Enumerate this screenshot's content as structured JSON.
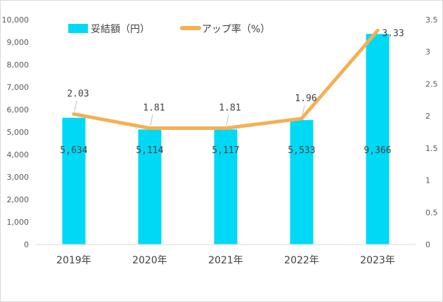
{
  "chart_data": {
    "type": "bar",
    "categories": [
      "2019年",
      "2020年",
      "2021年",
      "2022年",
      "2023年"
    ],
    "series": [
      {
        "name": "妥結額（円）",
        "kind": "bar",
        "axis": "left",
        "color": "#00d9f5",
        "values": [
          5634,
          5114,
          5117,
          5533,
          9366
        ],
        "labels": [
          "5,634",
          "5,114",
          "5,117",
          "5,533",
          "9,366"
        ]
      },
      {
        "name": "アップ率（%）",
        "kind": "line",
        "axis": "right",
        "color": "#f4b053",
        "values": [
          2.03,
          1.81,
          1.81,
          1.96,
          3.33
        ],
        "labels": [
          "2.03",
          "1.81",
          "1.81",
          "1.96",
          "3.33"
        ]
      }
    ],
    "y_left": {
      "min": 0,
      "max": 10000,
      "ticks": [
        "0",
        "1,000",
        "2,000",
        "3,000",
        "4,000",
        "5,000",
        "6,000",
        "7,000",
        "8,000",
        "9,000",
        "10,000"
      ]
    },
    "y_right": {
      "min": 0,
      "max": 3.5,
      "ticks": [
        "0",
        "0.5",
        "1",
        "1.5",
        "2",
        "2.5",
        "3",
        "3.5"
      ]
    },
    "legend_position": "top-left",
    "grid": false
  }
}
